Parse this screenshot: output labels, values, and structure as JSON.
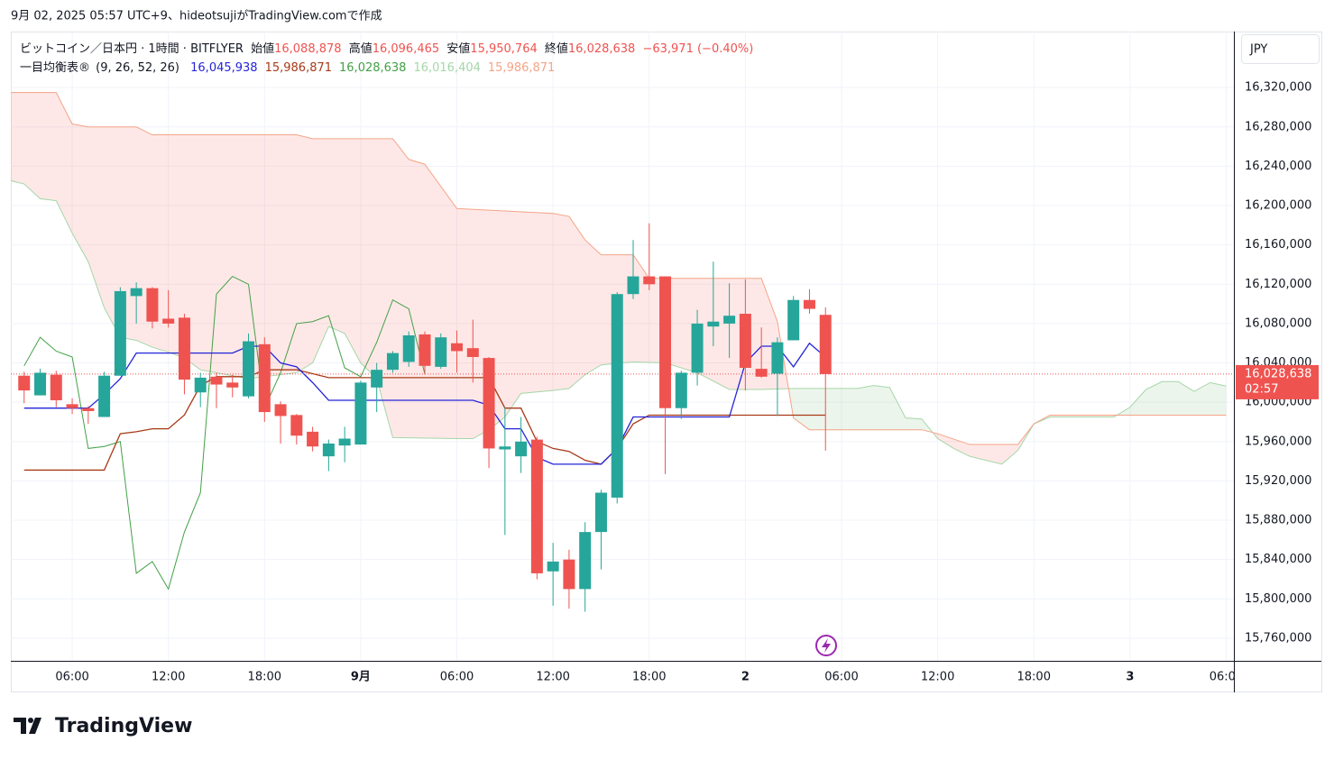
{
  "header": "9月 02, 2025 05:57 UTC+9、hideotsujiがTradingView.comで作成",
  "brand": "TradingView",
  "currency": "JPY",
  "legend": {
    "symbol": "ビットコイン／日本円 · 1時間 · BITFLYER",
    "open_label": "始値",
    "open": "16,088,878",
    "high_label": "高値",
    "high": "16,096,465",
    "low_label": "安値",
    "low": "15,950,764",
    "close_label": "終値",
    "close": "16,028,638",
    "change": "−63,971 (−0.40%)",
    "indicator": "一目均衡表®",
    "params": "(9, 26, 52, 26)",
    "values": [
      "16,045,938",
      "15,986,871",
      "16,028,638",
      "16,016,404",
      "15,986,871"
    ]
  },
  "chart_data": {
    "type": "candlestick",
    "up_color": "#26a69a",
    "down_color": "#ef5350",
    "grid": true,
    "xlim": [
      2.17,
      78.48
    ],
    "xticks": [
      {
        "value": 6,
        "label": "06:00"
      },
      {
        "value": 12,
        "label": "12:00"
      },
      {
        "value": 18,
        "label": "18:00"
      },
      {
        "value": 24,
        "label": "9月"
      },
      {
        "value": 30,
        "label": "06:00"
      },
      {
        "value": 36,
        "label": "12:00"
      },
      {
        "value": 42,
        "label": "18:00"
      },
      {
        "value": 48,
        "label": "2"
      },
      {
        "value": 54,
        "label": "06:00"
      },
      {
        "value": 60,
        "label": "12:00"
      },
      {
        "value": 66,
        "label": "18:00"
      },
      {
        "value": 72,
        "label": "3"
      },
      {
        "value": 78,
        "label": "06:00"
      }
    ],
    "ylim": [
      15737000,
      16377000
    ],
    "yticks": [
      {
        "value": 15760000,
        "label": "15,760,000"
      },
      {
        "value": 15800000,
        "label": "15,800,000"
      },
      {
        "value": 15840000,
        "label": "15,840,000"
      },
      {
        "value": 15880000,
        "label": "15,880,000"
      },
      {
        "value": 15920000,
        "label": "15,920,000"
      },
      {
        "value": 15960000,
        "label": "15,960,000"
      },
      {
        "value": 16000000,
        "label": "16,000,000"
      },
      {
        "value": 16040000,
        "label": "16,040,000"
      },
      {
        "value": 16080000,
        "label": "16,080,000"
      },
      {
        "value": 16120000,
        "label": "16,120,000"
      },
      {
        "value": 16160000,
        "label": "16,160,000"
      },
      {
        "value": 16200000,
        "label": "16,200,000"
      },
      {
        "value": 16240000,
        "label": "16,240,000"
      },
      {
        "value": 16280000,
        "label": "16,280,000"
      },
      {
        "value": 16320000,
        "label": "16,320,000"
      }
    ],
    "x": [
      3,
      4,
      5,
      6,
      7,
      8,
      9,
      10,
      11,
      12,
      13,
      14,
      15,
      16,
      17,
      18,
      19,
      20,
      21,
      22,
      23,
      24,
      25,
      26,
      27,
      28,
      29,
      30,
      31,
      32,
      33,
      34,
      35,
      36,
      37,
      38,
      39,
      40,
      41,
      42,
      43,
      44,
      45,
      46,
      47,
      48,
      49,
      50,
      51,
      52,
      53
    ],
    "open": [
      16027000,
      16007000,
      16028000,
      15998000,
      15994000,
      15985000,
      16027000,
      16108000,
      16116000,
      16085000,
      16086000,
      16010000,
      16026000,
      16020000,
      16006000,
      16059000,
      15998000,
      15987000,
      15970000,
      15945000,
      15956000,
      15957000,
      16015000,
      16033000,
      16041000,
      16069000,
      16036000,
      16060000,
      16055000,
      16045000,
      15952000,
      15945000,
      15962000,
      15828000,
      15840000,
      15810000,
      15868000,
      15903000,
      16110000,
      16128000,
      16128000,
      15994000,
      16030000,
      16077000,
      16080000,
      16090000,
      16034000,
      16029000,
      16063000,
      16104000,
      16088878
    ],
    "high": [
      16031000,
      16034000,
      16032000,
      16004000,
      15996000,
      16031000,
      16117000,
      16122000,
      16117000,
      16114000,
      16090000,
      16030000,
      16030000,
      16028000,
      16070000,
      16066000,
      16001000,
      15988000,
      15975000,
      15962000,
      15975000,
      16022000,
      16040000,
      16052000,
      16072000,
      16072000,
      16070000,
      16073000,
      16084000,
      16046000,
      15995000,
      15985000,
      15965000,
      15857000,
      15850000,
      15878000,
      15911000,
      16112000,
      16165000,
      16182000,
      16128000,
      16032000,
      16094000,
      16143000,
      16121000,
      16125000,
      16076000,
      16066000,
      16108000,
      16115000,
      16096465
    ],
    "low": [
      15999000,
      16007000,
      15995000,
      15988000,
      15978000,
      15985000,
      16027000,
      16080000,
      16075000,
      16076000,
      16008000,
      15995000,
      15994000,
      16005000,
      16004000,
      15980000,
      15958000,
      15957000,
      15950000,
      15930000,
      15939000,
      15957000,
      15990000,
      16030000,
      16036000,
      16028000,
      16034000,
      16030000,
      16020000,
      15933000,
      15865000,
      15928000,
      15820000,
      15793000,
      15790000,
      15787000,
      15830000,
      15897000,
      16105000,
      16114000,
      15927000,
      15983000,
      16017000,
      16057000,
      16045000,
      16012000,
      16025000,
      15986000,
      16063000,
      16090000,
      15950764
    ],
    "close": [
      16012000,
      16030000,
      16002000,
      15994000,
      15991000,
      16027000,
      16113000,
      16116000,
      16082000,
      16080000,
      16023000,
      16025000,
      16018000,
      16015000,
      16062000,
      15990000,
      15986000,
      15966000,
      15955000,
      15958000,
      15963000,
      16020000,
      16033000,
      16050000,
      16068000,
      16037000,
      16066000,
      16052000,
      16046000,
      15953000,
      15955000,
      15960000,
      15826000,
      15838000,
      15810000,
      15868000,
      15908000,
      16110000,
      16128000,
      16120000,
      15994000,
      16030000,
      16080000,
      16082000,
      16088000,
      16035000,
      16026000,
      16061000,
      16104000,
      16095000,
      16028638
    ],
    "last": {
      "value": 16028638,
      "label": "16,028,638",
      "countdown": "02:57",
      "color": "#ef5350"
    },
    "ichimoku": {
      "conversion": {
        "color": "#2424d8",
        "x": [
          3,
          4,
          5,
          6,
          7,
          8,
          9,
          10,
          11,
          12,
          13,
          14,
          15,
          16,
          17,
          18,
          19,
          20,
          21,
          22,
          23,
          24,
          25,
          26,
          27,
          28,
          29,
          30,
          31,
          32,
          33,
          34,
          35,
          36,
          37,
          38,
          39,
          40,
          41,
          42,
          43,
          44,
          45,
          46,
          47,
          48,
          49,
          50,
          51,
          52,
          53
        ],
        "values": [
          15994000,
          15994000,
          15994000,
          15994000,
          15994000,
          16008000,
          16024000,
          16050000,
          16050000,
          16050000,
          16050000,
          16050000,
          16050000,
          16050000,
          16057000,
          16057000,
          16040000,
          16036000,
          16020000,
          16002000,
          16002000,
          16002000,
          16002000,
          16002000,
          16002000,
          16002000,
          16002000,
          16002000,
          16002000,
          15997000,
          15973000,
          15973000,
          15944000,
          15937000,
          15937000,
          15937000,
          15937000,
          15953000,
          15985000,
          15985000,
          15985000,
          15985000,
          15985000,
          15985000,
          15985000,
          16040000,
          16057000,
          16057000,
          16036000,
          16060000,
          16045938
        ]
      },
      "base": {
        "color": "#a83a17",
        "x": [
          3,
          4,
          5,
          6,
          7,
          8,
          9,
          10,
          11,
          12,
          13,
          14,
          15,
          16,
          17,
          18,
          19,
          20,
          21,
          22,
          23,
          24,
          25,
          26,
          27,
          28,
          29,
          30,
          31,
          32,
          33,
          34,
          35,
          36,
          37,
          38,
          39,
          40,
          41,
          42,
          43,
          44,
          45,
          46,
          47,
          48,
          49,
          50,
          51,
          52,
          53
        ],
        "values": [
          15931000,
          15931000,
          15931000,
          15931000,
          15931000,
          15931000,
          15968000,
          15970000,
          15973000,
          15973000,
          15987000,
          16017000,
          16026000,
          16026000,
          16026000,
          16033000,
          16033000,
          16033000,
          16029000,
          16025000,
          16025000,
          16025000,
          16025000,
          16025000,
          16025000,
          16025000,
          16025000,
          16025000,
          16025000,
          16025000,
          15994000,
          15994000,
          15960000,
          15953000,
          15950000,
          15941000,
          15937000,
          15953000,
          15978000,
          15986871,
          15986871,
          15986871,
          15986871,
          15986871,
          15986871,
          15986871,
          15986871,
          15986871,
          15986871,
          15986871,
          15986871
        ]
      },
      "lagging": {
        "color": "#43a047",
        "x": [
          3,
          4,
          5,
          6,
          7,
          8,
          9,
          10,
          11,
          12,
          13,
          14,
          15,
          16,
          17,
          18,
          19,
          20,
          21,
          22,
          23,
          24,
          25,
          26,
          27,
          28
        ],
        "values": [
          16037000,
          16066000,
          16052000,
          16046000,
          15953000,
          15955000,
          15960000,
          15826000,
          15838000,
          15810000,
          15868000,
          15908000,
          16110000,
          16128000,
          16120000,
          15994000,
          16030000,
          16080000,
          16082000,
          16088000,
          16035000,
          16026000,
          16061000,
          16104000,
          16095000,
          16028638
        ]
      },
      "span_a": {
        "color": "#a5d6a7",
        "x": [
          2,
          3,
          4,
          5,
          6,
          7,
          8,
          9,
          10,
          11,
          12,
          13,
          14,
          15,
          17,
          20,
          21,
          22,
          23,
          24,
          25,
          26,
          30,
          31,
          32,
          33,
          34,
          36,
          37,
          38,
          39,
          41,
          43,
          45,
          47,
          49,
          51,
          55,
          56,
          57,
          58,
          59,
          60,
          61,
          62,
          64,
          65,
          66,
          67,
          71,
          72,
          73,
          74,
          75,
          76,
          77,
          78
        ],
        "values": [
          16226000,
          16222000,
          16207000,
          16205000,
          16172000,
          16143000,
          16096000,
          16066000,
          16063000,
          16056000,
          16051000,
          16045000,
          16033000,
          16030000,
          16024000,
          16030000,
          16040000,
          16077000,
          16070000,
          16040000,
          16024000,
          15964000,
          15963000,
          15963000,
          15972000,
          15985000,
          16009000,
          16012000,
          16014000,
          16028000,
          16038000,
          16041000,
          16040000,
          16030000,
          16013000,
          16013000,
          16014000,
          16014000,
          16017000,
          16015000,
          15984000,
          15983000,
          15963000,
          15953000,
          15945000,
          15937000,
          15951000,
          15978000,
          15985000,
          15985000,
          15995000,
          16013000,
          16021000,
          16021000,
          16011000,
          16020000,
          16016404
        ]
      },
      "span_b": {
        "color": "#f4a487",
        "x": [
          2,
          5,
          6,
          7,
          10,
          11,
          20,
          21,
          26,
          27,
          28,
          30,
          36,
          37,
          38,
          39,
          41,
          42,
          49,
          50,
          51,
          52,
          59,
          60,
          62,
          65,
          66,
          67,
          78
        ],
        "values": [
          16315000,
          16315000,
          16283000,
          16280000,
          16280000,
          16272000,
          16272000,
          16268000,
          16268000,
          16247000,
          16242000,
          16197000,
          16192000,
          16189000,
          16165000,
          16150000,
          16150000,
          16126000,
          16126000,
          16082000,
          15984000,
          15972000,
          15972000,
          15968000,
          15957000,
          15957000,
          15978000,
          15986871,
          15986871
        ]
      },
      "cloud_up": "rgba(67,160,71,0.10)",
      "cloud_down": "rgba(244,67,54,0.12)"
    }
  }
}
